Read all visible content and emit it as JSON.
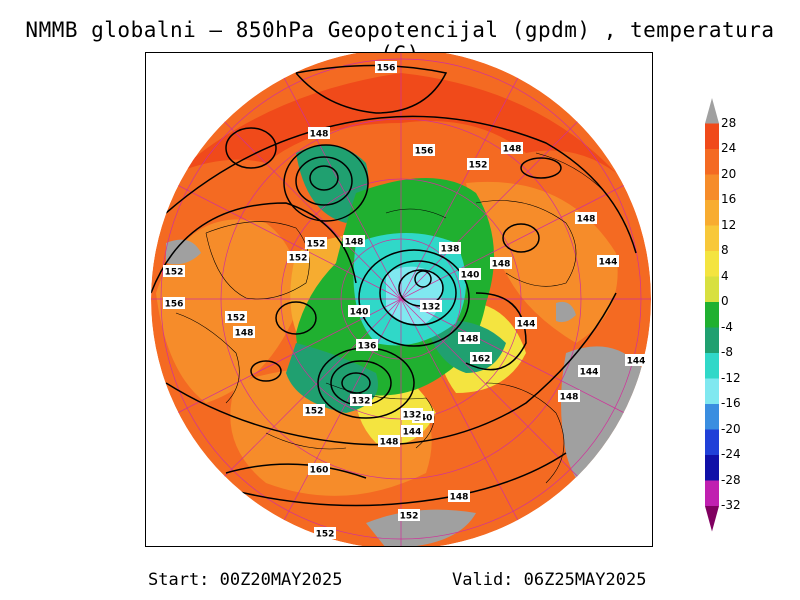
{
  "title": "NMMB globalni – 850hPa Geopotencijal (gpdm) , temperatura (C)",
  "footer": {
    "start": "Start: 00Z20MAY2025",
    "valid": "Valid: 06Z25MAY2025"
  },
  "colorbar": {
    "labels": [
      "28",
      "24",
      "20",
      "16",
      "12",
      "8",
      "4",
      "0",
      "-4",
      "-8",
      "-12",
      "-16",
      "-20",
      "-24",
      "-28",
      "-32"
    ],
    "colors": [
      "#a0a0a0",
      "#f04a1a",
      "#f46a22",
      "#f68c2a",
      "#f8ac30",
      "#f8c83a",
      "#f4e440",
      "#d8e040",
      "#20b030",
      "#20a070",
      "#30d8c8",
      "#80e8f0",
      "#3a8ee0",
      "#2040d8",
      "#1010a8",
      "#c020b0",
      "#800060"
    ]
  },
  "contour_labels": [
    {
      "t": "156"
    },
    {
      "t": "148"
    },
    {
      "t": "156"
    },
    {
      "t": "152"
    },
    {
      "t": "148"
    },
    {
      "t": "148"
    },
    {
      "t": "152"
    },
    {
      "t": "148"
    },
    {
      "t": "152"
    },
    {
      "t": "138"
    },
    {
      "t": "140"
    },
    {
      "t": "148"
    },
    {
      "t": "144"
    },
    {
      "t": "152"
    },
    {
      "t": "156"
    },
    {
      "t": "152"
    },
    {
      "t": "140"
    },
    {
      "t": "132"
    },
    {
      "t": "144"
    },
    {
      "t": "148"
    },
    {
      "t": "136"
    },
    {
      "t": "148"
    },
    {
      "t": "162"
    },
    {
      "t": "132"
    },
    {
      "t": "144"
    },
    {
      "t": "144"
    },
    {
      "t": "148"
    },
    {
      "t": "152"
    },
    {
      "t": "140"
    },
    {
      "t": "144"
    },
    {
      "t": "148"
    },
    {
      "t": "160"
    },
    {
      "t": "148"
    },
    {
      "t": "152"
    },
    {
      "t": "152"
    },
    {
      "t": "132"
    }
  ]
}
